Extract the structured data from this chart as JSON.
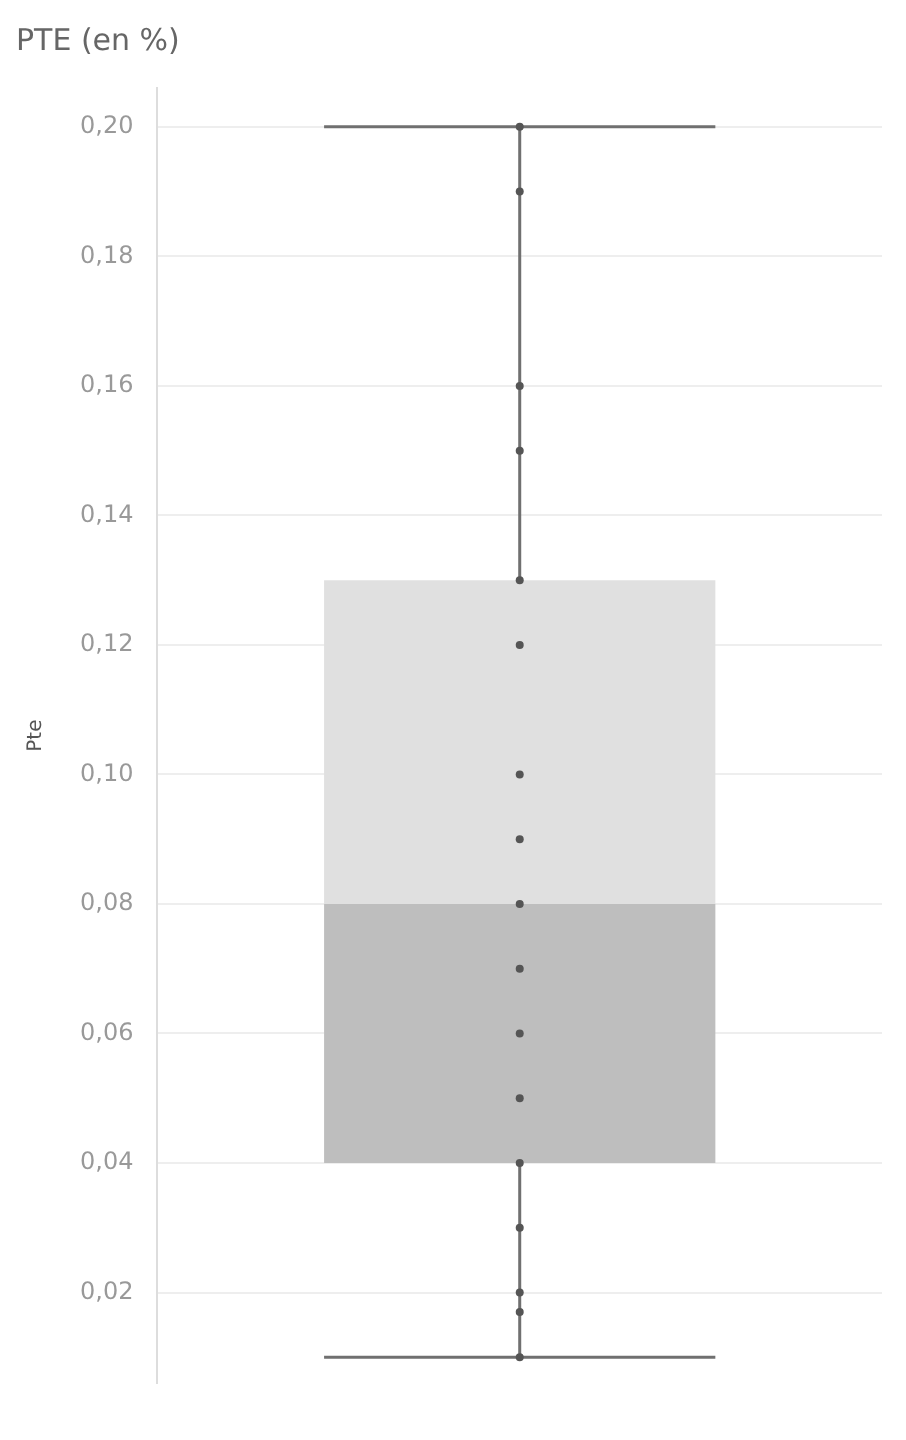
{
  "chart_data": {
    "type": "box",
    "title": "PTE (en %)",
    "ylabel": "Pte",
    "categories": [
      null
    ],
    "boxes": [
      {
        "low": 0.01,
        "q1": 0.04,
        "median": 0.08,
        "q3": 0.13,
        "high": 0.2
      }
    ],
    "colors": [
      "#e0e0e0"
    ],
    "series": [
      {
        "type": "scatter",
        "color": "#555555",
        "x": [
          null,
          null,
          null,
          null,
          null,
          null,
          null,
          null,
          null,
          null,
          null,
          null,
          null,
          null,
          null,
          null,
          null
        ],
        "values": [
          0.2,
          0.19,
          0.16,
          0.13,
          0.08,
          0.017,
          0.12,
          0.15,
          0.1,
          0.05,
          0.02,
          0.06,
          0.01,
          0.09,
          0.03,
          0.07,
          0.04
        ]
      }
    ],
    "ylim": [
      0.006,
      0.206
    ],
    "yticks": [
      {
        "value": 0.02,
        "label": "0,02"
      },
      {
        "value": 0.04,
        "label": "0,04"
      },
      {
        "value": 0.06,
        "label": "0,06"
      },
      {
        "value": 0.08,
        "label": "0,08"
      },
      {
        "value": 0.1,
        "label": "0,10"
      },
      {
        "value": 0.12,
        "label": "0,12"
      },
      {
        "value": 0.14,
        "label": "0,14"
      },
      {
        "value": 0.16,
        "label": "0,16"
      },
      {
        "value": 0.18,
        "label": "0,18"
      },
      {
        "value": 0.2,
        "label": "0,20"
      }
    ],
    "grid": "y",
    "legend": false,
    "marker": "circle"
  }
}
